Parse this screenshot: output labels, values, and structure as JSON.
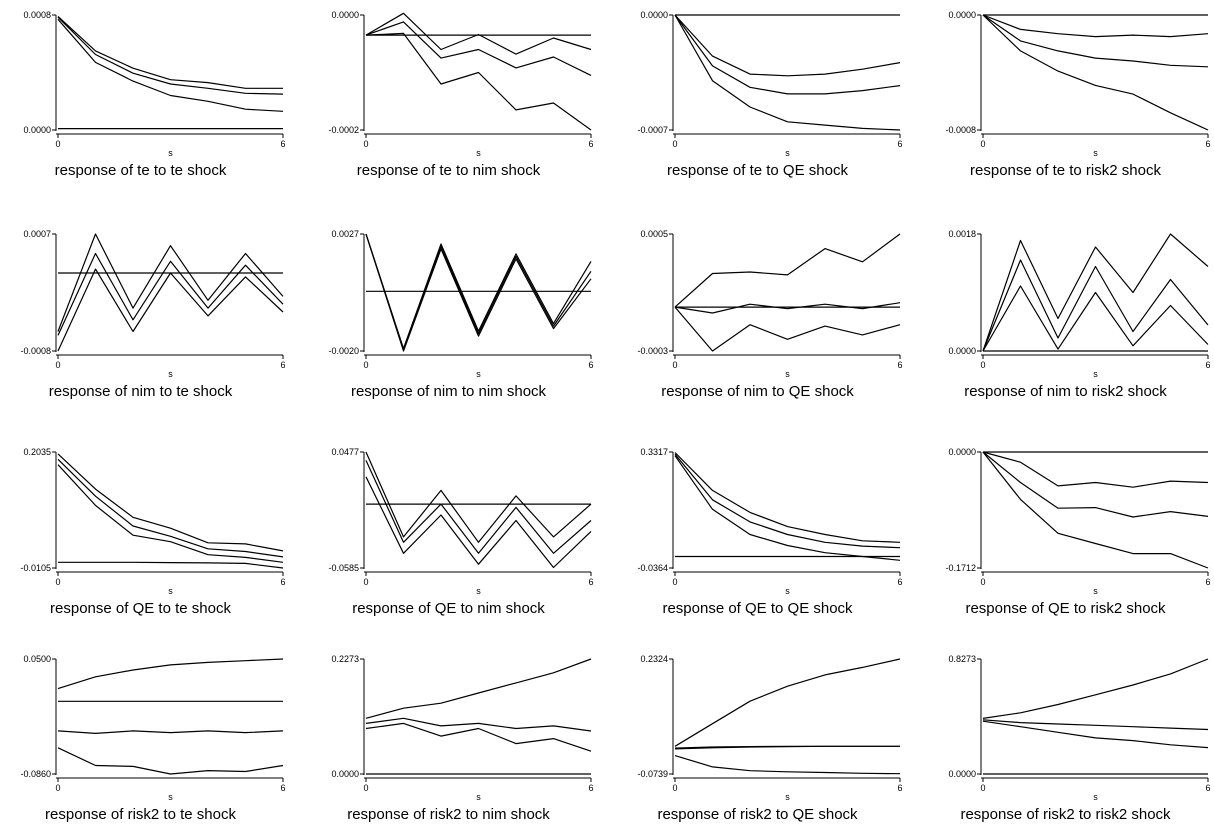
{
  "chart_data": [
    {
      "type": "line",
      "title": "response of te to te shock",
      "xlabel": "s",
      "x": [
        0,
        1,
        2,
        3,
        4,
        5,
        6
      ],
      "xticks": [
        "0",
        "6"
      ],
      "yticks": [
        "0.0008",
        "0.0000"
      ],
      "ylim": [
        0,
        0.0008
      ],
      "series": [
        {
          "values": [
            0.00079,
            0.00055,
            0.00043,
            0.00035,
            0.00033,
            0.00029,
            0.00029
          ]
        },
        {
          "values": [
            0.000785,
            0.000525,
            0.000395,
            0.00032,
            0.00029,
            0.000255,
            0.00025
          ]
        },
        {
          "values": [
            0.00077,
            0.00047,
            0.00034,
            0.00024,
            0.0002,
            0.000145,
            0.00013
          ]
        },
        {
          "values": [
            1e-05,
            1e-05,
            1e-05,
            1e-05,
            1e-05,
            1e-05,
            1e-05
          ]
        }
      ]
    },
    {
      "type": "line",
      "title": "response of te to nim shock",
      "xlabel": "s",
      "x": [
        0,
        1,
        2,
        3,
        4,
        5,
        6
      ],
      "xticks": [
        "0",
        "6"
      ],
      "yticks": [
        "0.0000",
        "-0.0002"
      ],
      "ylim": [
        -0.0002,
        0
      ],
      "series": [
        {
          "values": [
            -3.5e-05,
            3e-06,
            -6e-05,
            -3.4e-05,
            -6.8e-05,
            -4e-05,
            -6e-05
          ]
        },
        {
          "values": [
            -3.5e-05,
            -1.2e-05,
            -7.5e-05,
            -6e-05,
            -9.2e-05,
            -7.3e-05,
            -0.000105
          ]
        },
        {
          "values": [
            -3.5e-05,
            -3.2e-05,
            -0.00012,
            -0.0001,
            -0.000165,
            -0.000153,
            -0.0002
          ]
        },
        {
          "values": [
            -3.5e-05,
            -3.5e-05,
            -3.5e-05,
            -3.5e-05,
            -3.5e-05,
            -3.5e-05,
            -3.5e-05
          ]
        }
      ]
    },
    {
      "type": "line",
      "title": "response of te to QE shock",
      "xlabel": "s",
      "x": [
        0,
        1,
        2,
        3,
        4,
        5,
        6
      ],
      "xticks": [
        "0",
        "6"
      ],
      "yticks": [
        "0.0000",
        "-0.0007"
      ],
      "ylim": [
        -0.0007,
        0
      ],
      "series": [
        {
          "values": [
            0,
            0,
            0,
            0,
            0,
            0,
            0
          ]
        },
        {
          "values": [
            0,
            -0.00025,
            -0.00036,
            -0.00037,
            -0.00036,
            -0.00033,
            -0.00029
          ]
        },
        {
          "values": [
            0,
            -0.00031,
            -0.00044,
            -0.00048,
            -0.00048,
            -0.00046,
            -0.00043
          ]
        },
        {
          "values": [
            0,
            -0.0004,
            -0.00056,
            -0.00065,
            -0.00067,
            -0.00069,
            -0.0007
          ]
        }
      ]
    },
    {
      "type": "line",
      "title": "response of te to risk2 shock",
      "xlabel": "s",
      "x": [
        0,
        1,
        2,
        3,
        4,
        5,
        6
      ],
      "xticks": [
        "0",
        "6"
      ],
      "yticks": [
        "0.0000",
        "-0.0008"
      ],
      "ylim": [
        -0.0008,
        0
      ],
      "series": [
        {
          "values": [
            0,
            0,
            0,
            0,
            0,
            0,
            0
          ]
        },
        {
          "values": [
            0,
            -0.0001,
            -0.00013,
            -0.00015,
            -0.00014,
            -0.00015,
            -0.00013
          ]
        },
        {
          "values": [
            0,
            -0.00018,
            -0.00025,
            -0.0003,
            -0.00032,
            -0.00035,
            -0.00036
          ]
        },
        {
          "values": [
            0,
            -0.00025,
            -0.00039,
            -0.00049,
            -0.00055,
            -0.00068,
            -0.0008
          ]
        }
      ]
    },
    {
      "type": "line",
      "title": "response of nim to te shock",
      "xlabel": "s",
      "x": [
        0,
        1,
        2,
        3,
        4,
        5,
        6
      ],
      "xticks": [
        "0",
        "6"
      ],
      "yticks": [
        "0.0007",
        "-0.0008"
      ],
      "ylim": [
        -0.0008,
        0.0007
      ],
      "series": [
        {
          "values": [
            -0.00055,
            0.0007,
            -0.00025,
            0.00055,
            -0.00015,
            0.00045,
            -0.0001
          ]
        },
        {
          "values": [
            -0.0006,
            0.00045,
            -0.0004,
            0.00035,
            -0.00025,
            0.0003,
            -0.0002
          ]
        },
        {
          "values": [
            -0.0008,
            0.00025,
            -0.00055,
            0.0002,
            -0.00035,
            0.00015,
            -0.0003
          ]
        },
        {
          "values": [
            0.0002,
            0.0002,
            0.0002,
            0.0002,
            0.0002,
            0.0002,
            0.0002
          ]
        }
      ]
    },
    {
      "type": "line",
      "title": "response of nim to nim shock",
      "xlabel": "s",
      "x": [
        0,
        1,
        2,
        3,
        4,
        5,
        6
      ],
      "xticks": [
        "0",
        "6"
      ],
      "yticks": [
        "0.0027",
        "-0.0020"
      ],
      "ylim": [
        -0.002,
        0.0027
      ],
      "series": [
        {
          "values": [
            0.0027,
            -0.0019,
            0.0023,
            -0.0012,
            0.0019,
            -0.0009,
            0.0016
          ]
        },
        {
          "values": [
            0.0027,
            -0.00195,
            0.0022,
            -0.0013,
            0.0018,
            -0.001,
            0.0012
          ]
        },
        {
          "values": [
            0.0027,
            -0.002,
            0.0021,
            -0.0014,
            0.0017,
            -0.0011,
            0.0009
          ]
        },
        {
          "values": [
            0.0004,
            0.0004,
            0.0004,
            0.0004,
            0.0004,
            0.0004,
            0.0004
          ]
        }
      ]
    },
    {
      "type": "line",
      "title": "response of nim to QE shock",
      "xlabel": "s",
      "x": [
        0,
        1,
        2,
        3,
        4,
        5,
        6
      ],
      "xticks": [
        "0",
        "6"
      ],
      "yticks": [
        "0.0005",
        "-0.0003"
      ],
      "ylim": [
        -0.0003,
        0.0005
      ],
      "series": [
        {
          "values": [
            0,
            0.00023,
            0.00024,
            0.00022,
            0.0004,
            0.00031,
            0.0005
          ]
        },
        {
          "values": [
            0,
            -4e-05,
            2e-05,
            -1e-05,
            2e-05,
            -1e-05,
            3e-05
          ]
        },
        {
          "values": [
            0,
            -0.0003,
            -0.00012,
            -0.00022,
            -0.00013,
            -0.00019,
            -0.00012
          ]
        },
        {
          "values": [
            0,
            0,
            0,
            0,
            0,
            0,
            0
          ]
        }
      ]
    },
    {
      "type": "line",
      "title": "response of nim to risk2 shock",
      "xlabel": "s",
      "x": [
        0,
        1,
        2,
        3,
        4,
        5,
        6
      ],
      "xticks": [
        "0",
        "6"
      ],
      "yticks": [
        "0.0018",
        "0.0000"
      ],
      "ylim": [
        0,
        0.0018
      ],
      "series": [
        {
          "values": [
            0,
            0.0017,
            0.0005,
            0.0016,
            0.0009,
            0.0018,
            0.0013
          ]
        },
        {
          "values": [
            0,
            0.0014,
            0.0002,
            0.0013,
            0.0003,
            0.0011,
            0.0004
          ]
        },
        {
          "values": [
            0,
            0.001,
            3e-05,
            0.0009,
            8e-05,
            0.0007,
            0.0001
          ]
        },
        {
          "values": [
            0,
            0,
            0,
            0,
            0,
            0,
            0
          ]
        }
      ]
    },
    {
      "type": "line",
      "title": "response of QE to te shock",
      "xlabel": "s",
      "x": [
        0,
        1,
        2,
        3,
        4,
        5,
        6
      ],
      "xticks": [
        "0",
        "6"
      ],
      "yticks": [
        "0.2035",
        "-0.0105"
      ],
      "ylim": [
        -0.0105,
        0.2035
      ],
      "series": [
        {
          "values": [
            0.2,
            0.135,
            0.083,
            0.063,
            0.036,
            0.034,
            0.021
          ]
        },
        {
          "values": [
            0.19,
            0.122,
            0.067,
            0.048,
            0.025,
            0.02,
            0.01
          ]
        },
        {
          "values": [
            0.18,
            0.105,
            0.05,
            0.038,
            0.014,
            0.009,
            0.0
          ]
        },
        {
          "values": [
            0.0,
            0.0,
            0.0,
            -0.0005,
            -0.001,
            -0.002,
            -0.0105
          ]
        }
      ]
    },
    {
      "type": "line",
      "title": "response of QE to nim shock",
      "xlabel": "s",
      "x": [
        0,
        1,
        2,
        3,
        4,
        5,
        6
      ],
      "xticks": [
        "0",
        "6"
      ],
      "yticks": [
        "0.0477",
        "-0.0585"
      ],
      "ylim": [
        -0.0585,
        0.0477
      ],
      "series": [
        {
          "values": [
            0.0477,
            -0.03,
            0.0125,
            -0.035,
            0.0075,
            -0.03,
            0.0
          ]
        },
        {
          "values": [
            0.04,
            -0.035,
            0.0,
            -0.045,
            -0.003,
            -0.045,
            -0.015
          ]
        },
        {
          "values": [
            0.025,
            -0.045,
            -0.01,
            -0.055,
            -0.015,
            -0.058,
            -0.025
          ]
        },
        {
          "values": [
            0.0,
            0.0,
            0.0,
            0.0,
            0.0,
            0.0,
            0.0
          ]
        }
      ]
    },
    {
      "type": "line",
      "title": "response of QE to QE shock",
      "xlabel": "s",
      "x": [
        0,
        1,
        2,
        3,
        4,
        5,
        6
      ],
      "xticks": [
        "0",
        "6"
      ],
      "yticks": [
        "0.3317",
        "-0.0364"
      ],
      "ylim": [
        -0.0364,
        0.3317
      ],
      "series": [
        {
          "values": [
            0.33,
            0.21,
            0.14,
            0.095,
            0.07,
            0.05,
            0.045
          ]
        },
        {
          "values": [
            0.325,
            0.18,
            0.11,
            0.07,
            0.045,
            0.033,
            0.028
          ]
        },
        {
          "values": [
            0.32,
            0.15,
            0.07,
            0.035,
            0.012,
            0.0,
            -0.012
          ]
        },
        {
          "values": [
            0.0,
            0.0,
            0.0,
            0.0,
            0.0,
            0.0,
            0.0
          ]
        }
      ]
    },
    {
      "type": "line",
      "title": "response of QE to risk2 shock",
      "xlabel": "s",
      "x": [
        0,
        1,
        2,
        3,
        4,
        5,
        6
      ],
      "xticks": [
        "0",
        "6"
      ],
      "yticks": [
        "0.0000",
        "-0.1712"
      ],
      "ylim": [
        -0.1712,
        0
      ],
      "series": [
        {
          "values": [
            0,
            0,
            0,
            0,
            0,
            0,
            0
          ]
        },
        {
          "values": [
            0,
            -0.015,
            -0.05,
            -0.045,
            -0.052,
            -0.043,
            -0.045
          ]
        },
        {
          "values": [
            0,
            -0.045,
            -0.083,
            -0.082,
            -0.096,
            -0.088,
            -0.095
          ]
        },
        {
          "values": [
            0,
            -0.07,
            -0.12,
            -0.135,
            -0.15,
            -0.15,
            -0.1712
          ]
        }
      ]
    },
    {
      "type": "line",
      "title": "response of risk2 to te shock",
      "xlabel": "s",
      "x": [
        0,
        1,
        2,
        3,
        4,
        5,
        6
      ],
      "xticks": [
        "0",
        "6"
      ],
      "yticks": [
        "0.0500",
        "-0.0860"
      ],
      "ylim": [
        -0.086,
        0.05
      ],
      "series": [
        {
          "values": [
            0.015,
            0.029,
            0.037,
            0.043,
            0.046,
            0.048,
            0.05
          ]
        },
        {
          "values": [
            -0.035,
            -0.038,
            -0.035,
            -0.037,
            -0.035,
            -0.037,
            -0.035
          ]
        },
        {
          "values": [
            -0.055,
            -0.076,
            -0.077,
            -0.086,
            -0.082,
            -0.083,
            -0.076
          ]
        },
        {
          "values": [
            0.0,
            0.0,
            0.0,
            0.0,
            0.0,
            0.0,
            0.0
          ]
        }
      ]
    },
    {
      "type": "line",
      "title": "response of risk2 to nim shock",
      "xlabel": "s",
      "x": [
        0,
        1,
        2,
        3,
        4,
        5,
        6
      ],
      "xticks": [
        "0",
        "6"
      ],
      "yticks": [
        "0.2273",
        "0.0000"
      ],
      "ylim": [
        0,
        0.2273
      ],
      "series": [
        {
          "values": [
            0.11,
            0.13,
            0.14,
            0.16,
            0.18,
            0.2,
            0.2273
          ]
        },
        {
          "values": [
            0.1,
            0.11,
            0.095,
            0.1,
            0.09,
            0.095,
            0.085
          ]
        },
        {
          "values": [
            0.09,
            0.1,
            0.075,
            0.09,
            0.06,
            0.07,
            0.045
          ]
        },
        {
          "values": [
            0,
            0,
            0,
            0,
            0,
            0,
            0
          ]
        }
      ]
    },
    {
      "type": "line",
      "title": "response of risk2 to QE shock",
      "xlabel": "s",
      "x": [
        0,
        1,
        2,
        3,
        4,
        5,
        6
      ],
      "xticks": [
        "0",
        "6"
      ],
      "yticks": [
        "0.2324",
        "-0.0739"
      ],
      "ylim": [
        -0.0739,
        0.2324
      ],
      "series": [
        {
          "values": [
            0.0,
            0.06,
            0.12,
            0.16,
            0.19,
            0.21,
            0.2324
          ]
        },
        {
          "values": [
            -0.005,
            -0.002,
            -0.001,
            0.0,
            0.0,
            0.0,
            0.0
          ]
        },
        {
          "values": [
            -0.007,
            -0.004,
            -0.002,
            -0.001,
            0.0,
            0.0,
            0.0
          ]
        },
        {
          "values": [
            -0.025,
            -0.055,
            -0.065,
            -0.068,
            -0.07,
            -0.072,
            -0.073
          ]
        }
      ]
    },
    {
      "type": "line",
      "title": "response of risk2 to risk2 shock",
      "xlabel": "s",
      "x": [
        0,
        1,
        2,
        3,
        4,
        5,
        6
      ],
      "xticks": [
        "0",
        "6"
      ],
      "yticks": [
        "0.8273",
        "0.0000"
      ],
      "ylim": [
        0,
        0.8273
      ],
      "series": [
        {
          "values": [
            0.4,
            0.44,
            0.5,
            0.57,
            0.64,
            0.72,
            0.8273
          ]
        },
        {
          "values": [
            0.39,
            0.37,
            0.36,
            0.35,
            0.34,
            0.33,
            0.32
          ]
        },
        {
          "values": [
            0.38,
            0.34,
            0.3,
            0.26,
            0.24,
            0.21,
            0.19
          ]
        },
        {
          "values": [
            0,
            0,
            0,
            0,
            0,
            0,
            0
          ]
        }
      ]
    }
  ]
}
